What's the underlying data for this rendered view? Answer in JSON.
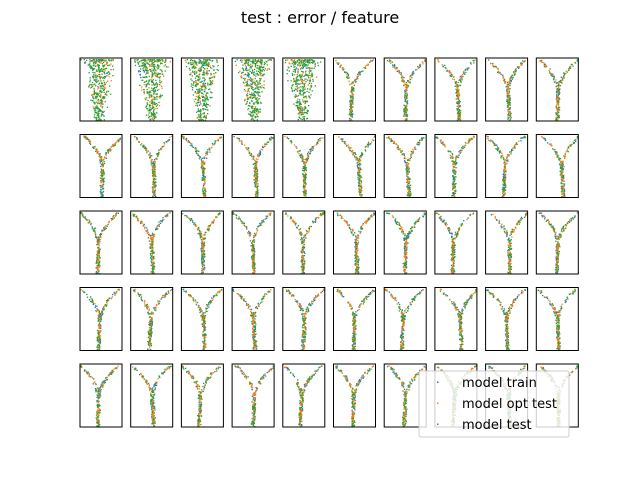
{
  "chart_data": {
    "type": "scatter",
    "title": "test : error / feature",
    "grid_rows": 5,
    "grid_cols": 10,
    "axes_ticks": "none",
    "legend_placement": "lower-right",
    "series": [
      {
        "name": "model train",
        "color": "#1f77b4"
      },
      {
        "name": "model opt test",
        "color": "#ff7f0e"
      },
      {
        "name": "model test",
        "color": "#2ca02c"
      }
    ],
    "panel_shape": "Y-shaped funnel; first row panels 1-5 dense diffuse spread at top"
  }
}
